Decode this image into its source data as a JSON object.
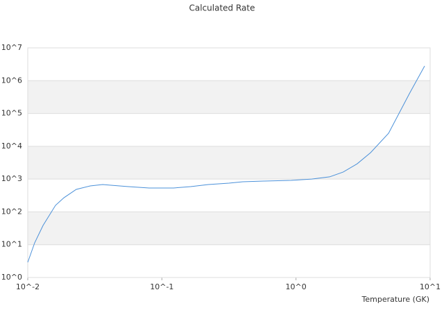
{
  "chart_data": {
    "type": "line",
    "title": "Calculated Rate",
    "x_label": "Temperature (GK)",
    "log_x": true,
    "log_y": true,
    "grid": "bands",
    "band_color": "#f2f2f2",
    "xlim": [
      0.01,
      10
    ],
    "ylim": [
      1,
      10000000
    ],
    "xticks": [
      {
        "value": 0.01,
        "label": "10^-2"
      },
      {
        "value": 0.1,
        "label": "10^-1"
      },
      {
        "value": 1,
        "label": "10^0"
      },
      {
        "value": 10,
        "label": "10^1"
      }
    ],
    "yticks": [
      {
        "value": 1,
        "label": "10^0"
      },
      {
        "value": 10,
        "label": "10^1"
      },
      {
        "value": 100,
        "label": "10^2"
      },
      {
        "value": 1000,
        "label": "10^3"
      },
      {
        "value": 10000,
        "label": "10^4"
      },
      {
        "value": 100000,
        "label": "10^5"
      },
      {
        "value": 1000000,
        "label": "10^6"
      },
      {
        "value": 10000000,
        "label": "10^7"
      }
    ],
    "x": [
      0.01,
      0.01126,
      0.013,
      0.0161,
      0.0186,
      0.023,
      0.0292,
      0.0362,
      0.0417,
      0.0563,
      0.0803,
      0.122,
      0.164,
      0.222,
      0.316,
      0.401,
      0.574,
      0.92,
      1.31,
      1.78,
      2.25,
      2.86,
      3.6,
      4.9,
      7.0,
      9.1
    ],
    "series": [
      {
        "color": "#4a90d9",
        "values": [
          2.9,
          11.4,
          38.5,
          158,
          270,
          485,
          620,
          680,
          650,
          590,
          535,
          535,
          590,
          680,
          750,
          830,
          870,
          915,
          1000,
          1170,
          1640,
          2930,
          6400,
          24900,
          400000,
          2800000
        ]
      }
    ]
  }
}
